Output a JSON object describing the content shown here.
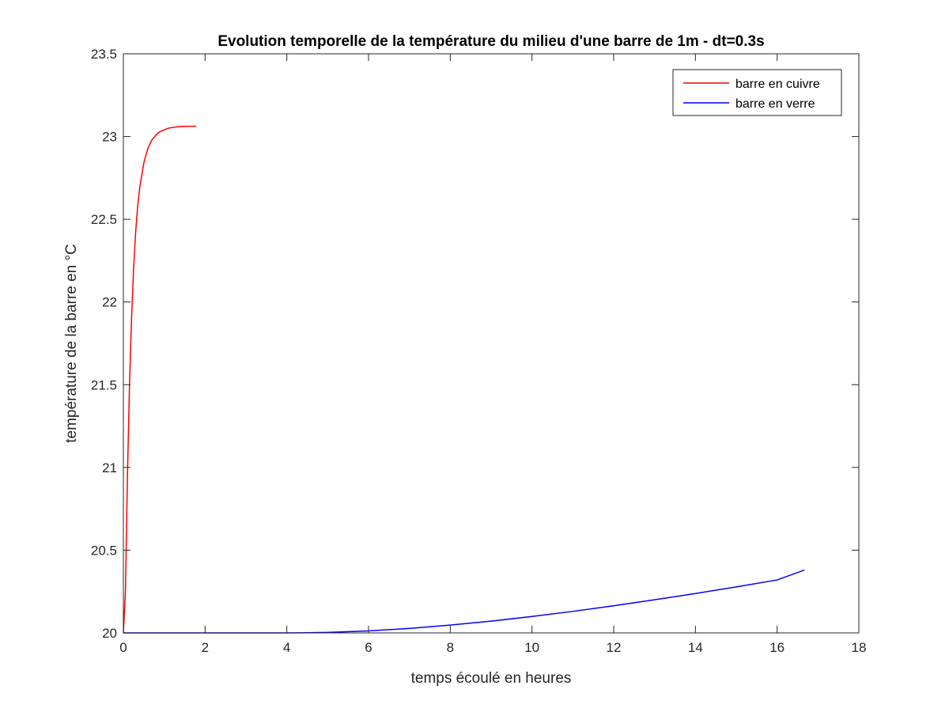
{
  "chart_data": {
    "type": "line",
    "title": "Evolution temporelle de la température du milieu d'une barre de 1m - dt=0.3s",
    "xlabel": "temps écoulé en heures",
    "ylabel": "température de la barre en °C",
    "xlim": [
      0,
      18
    ],
    "ylim": [
      20,
      23.5
    ],
    "xticks": [
      0,
      2,
      4,
      6,
      8,
      10,
      12,
      14,
      16,
      18
    ],
    "xtick_labels": [
      "0",
      "2",
      "4",
      "6",
      "8",
      "10",
      "12",
      "14",
      "16",
      "18"
    ],
    "yticks": [
      20,
      20.5,
      21,
      21.5,
      22,
      22.5,
      23,
      23.5
    ],
    "ytick_labels": [
      "20",
      "20.5",
      "21",
      "21.5",
      "22",
      "22.5",
      "23",
      "23.5"
    ],
    "grid": false,
    "legend_position": "top-right",
    "series": [
      {
        "name": "barre en cuivre",
        "color": "#ff0000",
        "x": [
          0,
          0.05,
          0.1,
          0.15,
          0.2,
          0.25,
          0.3,
          0.35,
          0.4,
          0.5,
          0.6,
          0.7,
          0.8,
          0.9,
          1.0,
          1.1,
          1.2,
          1.3,
          1.4,
          1.5,
          1.6,
          1.7,
          1.78
        ],
        "y": [
          20,
          20.25,
          20.95,
          21.5,
          21.9,
          22.2,
          22.42,
          22.58,
          22.69,
          22.84,
          22.93,
          22.98,
          23.01,
          23.03,
          23.04,
          23.05,
          23.055,
          23.058,
          23.06,
          23.061,
          23.062,
          23.062,
          23.062
        ]
      },
      {
        "name": "barre en verre",
        "color": "#0000ff",
        "x": [
          0,
          1,
          2,
          3,
          4,
          4.5,
          5,
          6,
          7,
          8,
          9,
          10,
          11,
          12,
          13,
          14,
          15,
          16,
          16.67
        ],
        "y": [
          20,
          20,
          20,
          20,
          20,
          20.001,
          20.003,
          20.012,
          20.027,
          20.047,
          20.071,
          20.099,
          20.13,
          20.164,
          20.2,
          20.238,
          20.278,
          20.32,
          20.38
        ]
      }
    ]
  }
}
